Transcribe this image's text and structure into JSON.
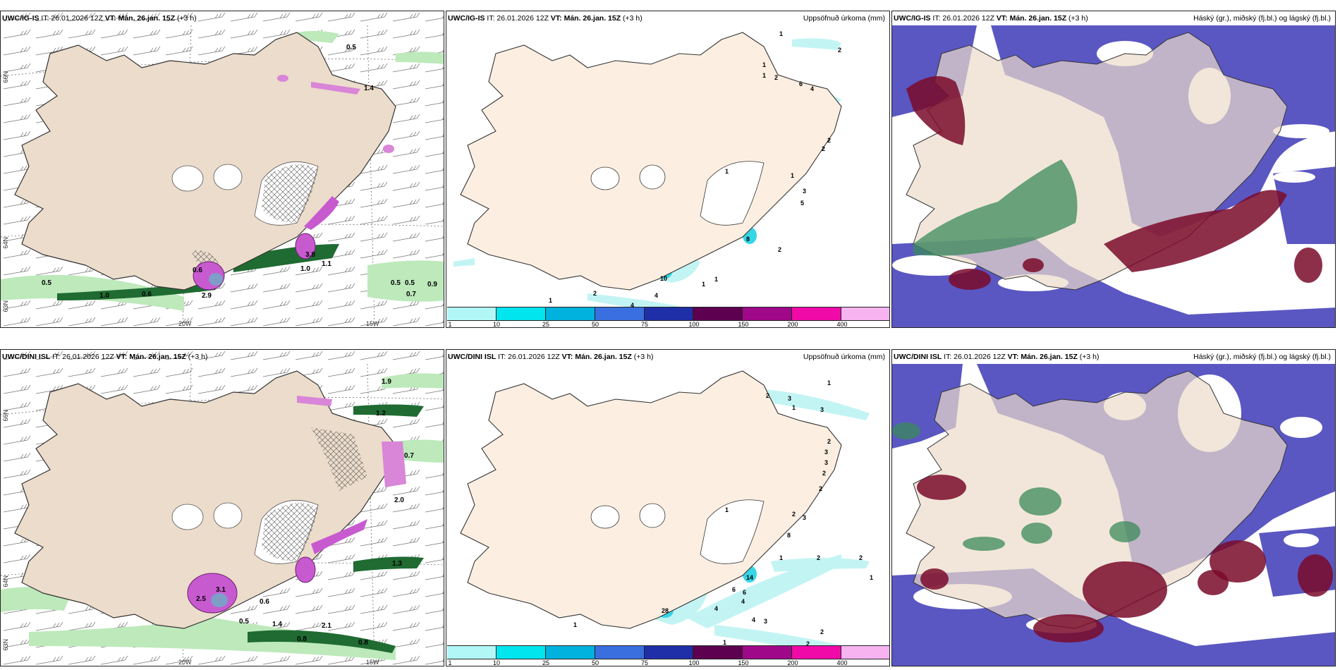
{
  "panels": [
    {
      "model": "UWC/IG-IS",
      "it": "IT: 26.01.2026 12Z",
      "vt_label": "VT:",
      "vt_value": "Mán. 26.jan. 15Z",
      "lead": "(+3 h)",
      "right_title": "",
      "lat_labels": [
        "66N",
        "64N",
        "63N"
      ],
      "lon_labels": [
        "20W",
        "15W"
      ],
      "values": [
        "0.5",
        "0.6",
        "1.0",
        "2.9",
        "0.5",
        "0.5",
        "0.9",
        "0.7",
        "1.4",
        "3.8",
        "0.6",
        "0.5",
        "1.1",
        "1.0"
      ]
    },
    {
      "model": "UWC/IG-IS",
      "it": "IT: 26.01.2026 12Z",
      "vt_label": "VT:",
      "vt_value": "Mán. 26.jan. 15Z",
      "lead": "(+3 h)",
      "right_title": "Uppsöfnuð úrkoma (mm)",
      "values": [
        "1",
        "2",
        "1",
        "1",
        "2",
        "6",
        "4",
        "2",
        "2",
        "1",
        "1",
        "3",
        "5",
        "1",
        "1",
        "2",
        "4",
        "4",
        "2",
        "1",
        "10",
        "8"
      ]
    },
    {
      "model": "UWC/IG-IS",
      "it": "IT: 26.01.2026 12Z",
      "vt_label": "VT:",
      "vt_value": "Mán. 26.jan. 15Z",
      "lead": "(+3 h)",
      "right_title": "Háský (gr.), miðský (fj.bl.) og lágský (fj.bl.)"
    },
    {
      "model": "UWC/DINI ISL",
      "it": "IT: 26.01.2026 12Z",
      "vt_label": "VT:",
      "vt_value": "Mán. 26.jan. 15Z",
      "lead": "(+3 h)",
      "right_title": "",
      "lat_labels": [
        "66N",
        "64N",
        "63N"
      ],
      "lon_labels": [
        "20W",
        "15W"
      ],
      "values": [
        "1.9",
        "1.2",
        "0.7",
        "2.0",
        "3.1",
        "2.5",
        "0.6",
        "0.5",
        "0.8",
        "1.3",
        "1.4",
        "2.1",
        "0.8"
      ]
    },
    {
      "model": "UWC/DINI ISL",
      "it": "IT: 26.01.2026 12Z",
      "vt_label": "VT:",
      "vt_value": "Mán. 26.jan. 15Z",
      "lead": "(+3 h)",
      "right_title": "Uppsöfnuð úrkoma (mm)",
      "values": [
        "1",
        "2",
        "3",
        "1",
        "3",
        "2",
        "3",
        "3",
        "2",
        "2",
        "1",
        "2",
        "3",
        "8",
        "1",
        "2",
        "2",
        "1",
        "6",
        "6",
        "4",
        "4",
        "3",
        "4",
        "2",
        "1",
        "1",
        "2",
        "28",
        "14"
      ]
    },
    {
      "model": "UWC/DINI ISL",
      "it": "IT: 26.01.2026 12Z",
      "vt_label": "VT:",
      "vt_value": "Mán. 26.jan. 15Z",
      "lead": "(+3 h)",
      "right_title": "Háský (gr.), miðský (fj.bl.) og lágský (fj.bl.)"
    }
  ],
  "colorbar": {
    "ticks": [
      "1",
      "10",
      "25",
      "50",
      "75",
      "100",
      "150",
      "200",
      "400"
    ],
    "colors": [
      "#b2f7f7",
      "#00e5ee",
      "#00b2dd",
      "#3a6fe0",
      "#1f2fa8",
      "#5e0050",
      "#a0088a",
      "#f00aa8",
      "#f6b3f0"
    ]
  },
  "colors": {
    "land": "#ecdccb",
    "land_precip": "#fcefe2",
    "precip_light": "#c3f4f4",
    "precip_mid": "#35d6e6",
    "green_light": "#bde9bb",
    "green_dark": "#1f6b32",
    "magenta": "#c85ad0",
    "cloud_high": "#3a8a5a",
    "cloud_mid": "#5a57c2",
    "cloud_low": "#7a0a2a"
  }
}
